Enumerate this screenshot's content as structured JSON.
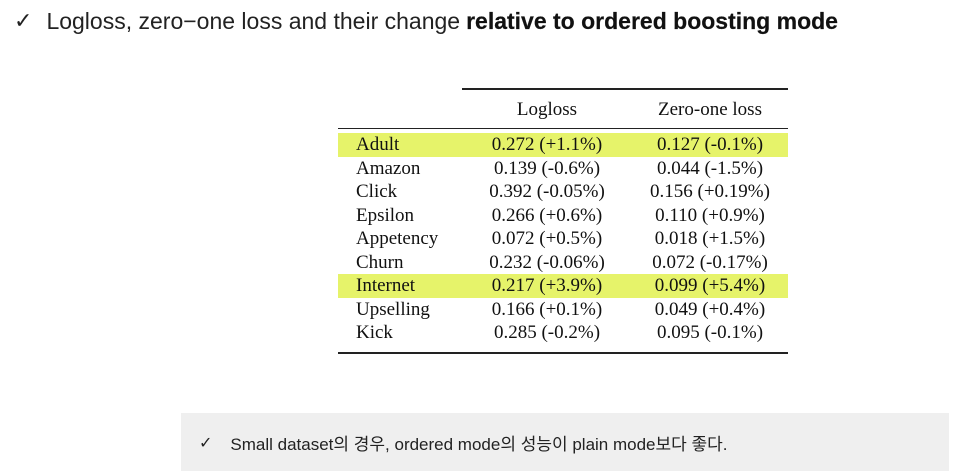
{
  "title": {
    "check_glyph": "✓",
    "text_plain": "Logloss, zero−one loss and their change",
    "text_emphasis": "relative to ordered boosting mode"
  },
  "table": {
    "columns": [
      "",
      "Logloss",
      "Zero-one loss"
    ],
    "highlight_color": "#e6f36a",
    "rows": [
      {
        "name": "Adult",
        "logloss": "0.272 (+1.1%)",
        "zero_one": "0.127 (-0.1%)",
        "highlighted": true
      },
      {
        "name": "Amazon",
        "logloss": "0.139 (-0.6%)",
        "zero_one": "0.044 (-1.5%)",
        "highlighted": false
      },
      {
        "name": "Click",
        "logloss": "0.392 (-0.05%)",
        "zero_one": "0.156 (+0.19%)",
        "highlighted": false
      },
      {
        "name": "Epsilon",
        "logloss": "0.266 (+0.6%)",
        "zero_one": "0.110 (+0.9%)",
        "highlighted": false
      },
      {
        "name": "Appetency",
        "logloss": "0.072 (+0.5%)",
        "zero_one": "0.018 (+1.5%)",
        "highlighted": false
      },
      {
        "name": "Churn",
        "logloss": "0.232 (-0.06%)",
        "zero_one": "0.072 (-0.17%)",
        "highlighted": false
      },
      {
        "name": "Internet",
        "logloss": "0.217 (+3.9%)",
        "zero_one": "0.099 (+5.4%)",
        "highlighted": true
      },
      {
        "name": "Upselling",
        "logloss": "0.166 (+0.1%)",
        "zero_one": "0.049 (+0.4%)",
        "highlighted": false
      },
      {
        "name": "Kick",
        "logloss": "0.285 (-0.2%)",
        "zero_one": "0.095 (-0.1%)",
        "highlighted": false
      }
    ]
  },
  "note": {
    "check_glyph": "✓",
    "text": "Small dataset의 경우, ordered mode의 성능이 plain mode보다 좋다."
  }
}
